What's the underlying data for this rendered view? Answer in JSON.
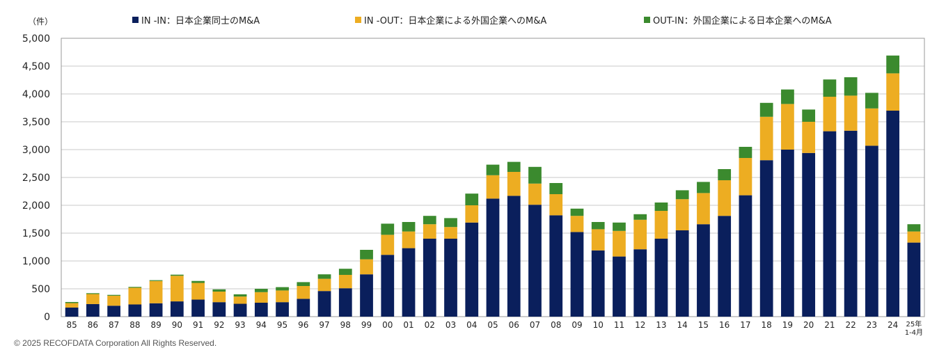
{
  "unit_label": "（件）",
  "copyright": "© 2025  RECOFDATA Corporation All Rights Reserved.",
  "colors": {
    "in_in": "#0a1f5c",
    "in_out": "#edad22",
    "out_in": "#3b8a2e",
    "grid": "#c8c8c8",
    "axis": "#555555"
  },
  "chart_data": {
    "type": "bar",
    "stacked": true,
    "ylim": [
      0,
      5000
    ],
    "yticks": [
      "0",
      "500",
      "1,000",
      "1,500",
      "2,000",
      "2,500",
      "3,000",
      "3,500",
      "4,000",
      "4,500",
      "5,000"
    ],
    "ytick_values": [
      0,
      500,
      1000,
      1500,
      2000,
      2500,
      3000,
      3500,
      4000,
      4500,
      5000
    ],
    "grid": true,
    "legend_position": "top",
    "categories": [
      "85",
      "86",
      "87",
      "88",
      "89",
      "90",
      "91",
      "92",
      "93",
      "94",
      "95",
      "96",
      "97",
      "98",
      "99",
      "00",
      "01",
      "02",
      "03",
      "04",
      "05",
      "06",
      "07",
      "08",
      "09",
      "10",
      "11",
      "12",
      "13",
      "14",
      "15",
      "16",
      "17",
      "18",
      "19",
      "20",
      "21",
      "22",
      "23",
      "24",
      "25年\n1-4月"
    ],
    "series": [
      {
        "name": "IN -IN：日本企業同士のM&A",
        "values": [
          163,
          226,
          196,
          219,
          240,
          274,
          306,
          260,
          231,
          250,
          260,
          320,
          460,
          510,
          760,
          1110,
          1230,
          1400,
          1400,
          1690,
          2120,
          2170,
          2010,
          1820,
          1520,
          1190,
          1080,
          1210,
          1400,
          1550,
          1660,
          1810,
          2180,
          2810,
          3000,
          2940,
          3330,
          3340,
          3070,
          3700,
          1330
        ]
      },
      {
        "name": "IN -OUT：日本企業による外国企業へのM&A",
        "values": [
          80,
          180,
          180,
          300,
          400,
          460,
          300,
          190,
          130,
          190,
          210,
          230,
          220,
          240,
          270,
          360,
          300,
          260,
          210,
          310,
          420,
          430,
          380,
          380,
          290,
          380,
          460,
          530,
          500,
          560,
          560,
          640,
          670,
          780,
          820,
          560,
          620,
          630,
          670,
          670,
          200
        ]
      },
      {
        "name": "OUT-IN：外国企業による日本企業へのM&A",
        "values": [
          20,
          15,
          15,
          15,
          15,
          20,
          35,
          40,
          40,
          60,
          60,
          70,
          80,
          110,
          170,
          200,
          170,
          150,
          160,
          210,
          190,
          180,
          300,
          200,
          130,
          130,
          150,
          100,
          150,
          160,
          200,
          200,
          200,
          250,
          260,
          220,
          310,
          330,
          280,
          320,
          130
        ]
      }
    ]
  }
}
